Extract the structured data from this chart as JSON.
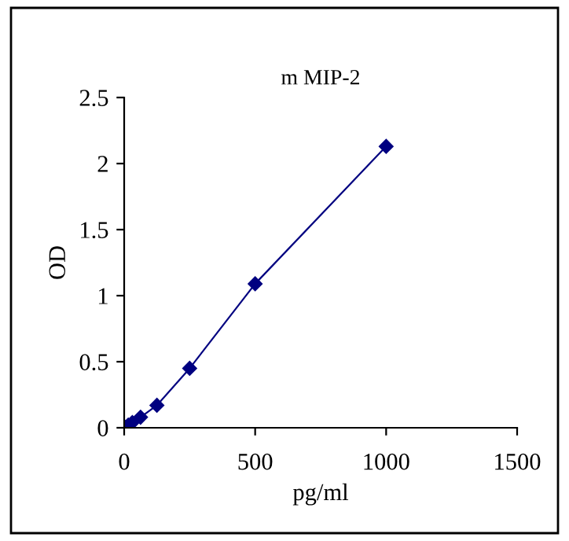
{
  "chart_data": {
    "type": "line",
    "title": "m MIP-2",
    "xlabel": "pg/ml",
    "ylabel": "OD",
    "x": [
      0,
      15.6,
      31.25,
      62.5,
      125,
      250,
      500,
      1000
    ],
    "series": [
      {
        "color": "#000080",
        "values": [
          0.01,
          0.02,
          0.04,
          0.08,
          0.17,
          0.45,
          1.09,
          2.13
        ]
      }
    ],
    "xlim": [
      0,
      1500
    ],
    "xticks": [
      0,
      500,
      1000,
      1500
    ],
    "ylim": [
      0,
      2.5
    ],
    "yticks": [
      0,
      0.5,
      1,
      1.5,
      2,
      2.5
    ],
    "marker": "diamond",
    "line_style": "solid",
    "grid": false,
    "legend": false
  }
}
